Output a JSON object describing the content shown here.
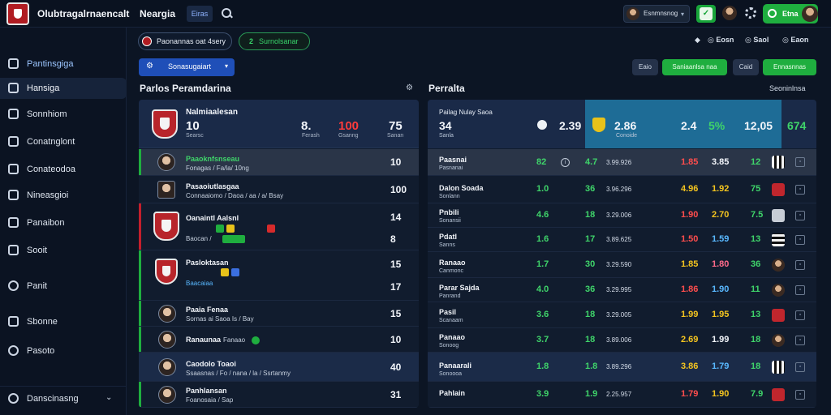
{
  "topbar": {
    "brand": "Olubtragalrnaencalt",
    "nav": "Neargia",
    "chip": "Eiras",
    "user_select": "Esnmnsnog",
    "login_label": "Etna"
  },
  "sidebar": {
    "items": [
      {
        "label": "Pantinsgiga"
      },
      {
        "label": "Hansiga"
      },
      {
        "label": "Sonnhiom"
      },
      {
        "label": "Conatnglont"
      },
      {
        "label": "Conateodoa"
      },
      {
        "label": "Nineasgioi"
      },
      {
        "label": "Panaibon"
      },
      {
        "label": "Sooit"
      },
      {
        "label": "Panit"
      },
      {
        "label": "Sbonne"
      },
      {
        "label": "Pasoto"
      }
    ],
    "footer": "Danscinasng"
  },
  "header": {
    "pill1": "Paonannas oat 4sery",
    "pill2_num": "2",
    "pill2_label": "Surnolsanar",
    "icons": [
      "Eosn",
      "Saol",
      "Eaon"
    ],
    "dropdown": "Sonasugaiart",
    "buttons": [
      "Eaio",
      "Saniaanlsa naa",
      "Caid",
      "Ennasnnas"
    ]
  },
  "left": {
    "title": "Parlos Peramdarina",
    "header": {
      "name": "Nalmiaalesan",
      "v1": "10",
      "v2": "8.",
      "v3": "100",
      "v4": "75",
      "s1": "Searsc",
      "s2": "Ferash",
      "s3": "Gsanng",
      "s4": "Sanan"
    },
    "rows": [
      {
        "t1": "Paaoknfsnseau",
        "t2": "Fonagas / Fa/la/ 10ng",
        "num": "10"
      },
      {
        "t1": "Pasaoiutlasgaa",
        "t2": "Connaaiomo / Daoa / aa / a/ Bsay",
        "num": "100"
      },
      {
        "t1": "Oanaintl Aalsnl",
        "t2": "Baocan /",
        "num": "14",
        "num2": "8"
      },
      {
        "t1": "Pasloktasan",
        "t2": "Baacaiaa",
        "num": "15",
        "num2": "17"
      },
      {
        "t1": "Paaia Fenaa",
        "t2": "Sornas ai Saoa Is / Bay",
        "num": "15"
      },
      {
        "t1": "Ranaunaa",
        "t2": "Fanaao",
        "num": "10"
      },
      {
        "t1": "Caodolo Toaoi",
        "t2": "Ssaasnas / Fo / nana / la / Ssrtanmy",
        "num": "40"
      },
      {
        "t1": "Panhlansan",
        "t2": "Foanosaia / Sap",
        "num": "31"
      }
    ]
  },
  "right": {
    "title": "Perralta",
    "right_label": "Seoninlnsa",
    "header": {
      "name": "Pailag Nulay Saoa",
      "v1": "34",
      "s1": "Sanla",
      "v2": "2.39",
      "v3": "2.86",
      "s3": "Conoide",
      "v4": "2.4",
      "v5": "5%",
      "v6": "12,05",
      "v7": "674"
    },
    "rows": [
      {
        "lab": "Paasnai",
        "lab2": "Pasnanai",
        "a": "82",
        "b": "4.7",
        "mid": "3.99.926",
        "c": "1.85",
        "d": "3.85",
        "e": "12"
      },
      {
        "lab": "Dalon Soada",
        "lab2": "Sonlann",
        "a": "1.0",
        "b": "36",
        "mid": "3.96.296",
        "c": "4.96",
        "d": "1.92",
        "e": "75"
      },
      {
        "lab": "Pnbili",
        "lab2": "Sonansii",
        "a": "4.6",
        "b": "18",
        "mid": "3.29.006",
        "c": "1.90",
        "d": "2.70",
        "e": "7.5"
      },
      {
        "lab": "Pdatl",
        "lab2": "Sanns",
        "a": "1.6",
        "b": "17",
        "mid": "3.89.625",
        "c": "1.50",
        "d": "1.59",
        "e": "13"
      },
      {
        "lab": "Ranaao",
        "lab2": "Canmonc",
        "a": "1.7",
        "b": "30",
        "mid": "3.29.590",
        "c": "1.85",
        "d": "1.80",
        "e": "36"
      },
      {
        "lab": "Parar Sajda",
        "lab2": "Panrand",
        "a": "4.0",
        "b": "36",
        "mid": "3.29.995",
        "c": "1.86",
        "d": "1.90",
        "e": "11"
      },
      {
        "lab": "Pasil",
        "lab2": "Scanaam",
        "a": "3.6",
        "b": "18",
        "mid": "3.29.005",
        "c": "1.99",
        "d": "1.95",
        "e": "13"
      },
      {
        "lab": "Panaao",
        "lab2": "Sonoog",
        "a": "3.7",
        "b": "18",
        "mid": "3.89.006",
        "c": "2.69",
        "d": "1.99",
        "e": "18"
      },
      {
        "lab": "Panaarali",
        "lab2": "Sonoooa",
        "a": "1.8",
        "b": "1.8",
        "mid": "3.89.296",
        "c": "3.86",
        "d": "1.79",
        "e": "18"
      },
      {
        "lab": "Pahlain",
        "lab2": "",
        "a": "3.9",
        "b": "1.9",
        "mid": "2.25.957",
        "c": "1.79",
        "d": "1.90",
        "e": "7.9"
      }
    ]
  }
}
